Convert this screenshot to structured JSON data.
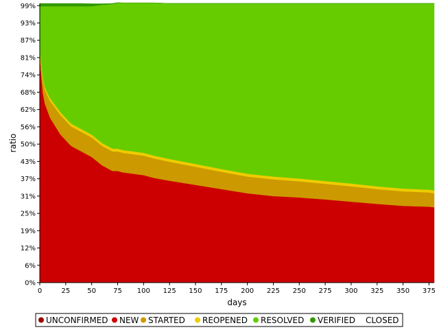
{
  "chart_data": {
    "type": "area",
    "stacked": true,
    "xlabel": "days",
    "ylabel": "ratio",
    "xlim": [
      0,
      380
    ],
    "ylim": [
      0,
      100
    ],
    "x_ticks": [
      0,
      25,
      50,
      75,
      100,
      125,
      150,
      175,
      200,
      225,
      250,
      275,
      300,
      325,
      350,
      375
    ],
    "y_ticks": [
      {
        "value": 0,
        "label": "0%"
      },
      {
        "value": 6.2,
        "label": "6%"
      },
      {
        "value": 12.4,
        "label": "12%"
      },
      {
        "value": 18.6,
        "label": "19%"
      },
      {
        "value": 24.8,
        "label": "25%"
      },
      {
        "value": 31.0,
        "label": "31%"
      },
      {
        "value": 37.2,
        "label": "37%"
      },
      {
        "value": 43.4,
        "label": "43%"
      },
      {
        "value": 49.6,
        "label": "50%"
      },
      {
        "value": 55.8,
        "label": "56%"
      },
      {
        "value": 62.0,
        "label": "62%"
      },
      {
        "value": 68.2,
        "label": "68%"
      },
      {
        "value": 74.4,
        "label": "74%"
      },
      {
        "value": 80.6,
        "label": "81%"
      },
      {
        "value": 86.8,
        "label": "87%"
      },
      {
        "value": 93.0,
        "label": "93%"
      },
      {
        "value": 99.2,
        "label": "99%"
      }
    ],
    "grid": false,
    "legend_position": "bottom",
    "x": [
      0,
      1,
      3,
      5,
      8,
      10,
      15,
      20,
      25,
      30,
      40,
      50,
      60,
      70,
      75,
      80,
      90,
      100,
      110,
      125,
      150,
      175,
      200,
      225,
      250,
      275,
      300,
      325,
      350,
      375,
      380
    ],
    "series": [
      {
        "name": "UNCONFIRMED",
        "color": "#990000",
        "values": [
          0,
          0,
          0,
          0,
          0,
          0,
          0,
          0,
          0,
          0,
          0,
          0,
          0,
          0,
          0,
          0,
          0,
          0,
          0,
          0,
          0,
          0,
          0,
          0,
          0,
          0,
          0,
          0,
          0,
          0,
          0
        ]
      },
      {
        "name": "NEW",
        "color": "#cc0000",
        "values": [
          82,
          76,
          68,
          64,
          61,
          59,
          56,
          53,
          51,
          49,
          47,
          45,
          42,
          40,
          40,
          39.5,
          39,
          38.5,
          37.5,
          36.5,
          35,
          33.5,
          32,
          31,
          30.5,
          29.8,
          29,
          28.2,
          27.5,
          27.2,
          27
        ]
      },
      {
        "name": "STARTED",
        "color": "#cc9900",
        "values": [
          1,
          3,
          4.5,
          5,
          5.5,
          6,
          6.5,
          7,
          7,
          7,
          7,
          7,
          7,
          7,
          7,
          7,
          7,
          7,
          7,
          6.8,
          6.5,
          6.2,
          6,
          6,
          5.8,
          5.6,
          5.5,
          5.3,
          5.2,
          5.1,
          5
        ]
      },
      {
        "name": "REOPENED",
        "color": "#eecc00",
        "values": [
          0.5,
          1,
          1,
          1,
          1,
          1,
          1,
          1,
          1,
          1,
          1,
          1,
          1,
          1,
          1,
          1,
          1,
          1,
          1,
          1,
          1,
          1,
          1,
          1,
          1,
          1,
          1,
          1,
          1,
          1,
          1
        ]
      },
      {
        "name": "RESOLVED",
        "color": "#66cc00",
        "values": [
          15.5,
          19,
          25.5,
          29,
          31.5,
          33,
          35.5,
          38,
          40,
          42,
          44,
          46,
          49.5,
          51.8,
          52.2,
          52.7,
          53.2,
          53.7,
          54.7,
          55.7,
          57.5,
          59.3,
          61,
          62,
          62.7,
          63.6,
          64.5,
          65.5,
          66.3,
          66.7,
          67
        ]
      },
      {
        "name": "VERIFIED",
        "color": "#339900",
        "values": [
          1,
          1,
          1,
          1,
          1,
          1,
          1,
          1,
          1,
          1,
          1,
          0.9,
          0.4,
          0.2,
          0.1,
          0,
          0,
          0,
          0,
          0,
          0,
          0,
          0,
          0,
          0,
          0,
          0,
          0,
          0,
          0,
          0
        ]
      },
      {
        "name": "CLOSED",
        "color": "#ffffff",
        "values": [
          0,
          0,
          0,
          0,
          0,
          0,
          0,
          0,
          0,
          0,
          0,
          0,
          0,
          0,
          0,
          0,
          0,
          0,
          0,
          0,
          0,
          0,
          0,
          0,
          0,
          0,
          0,
          0,
          0,
          0,
          0
        ]
      }
    ]
  }
}
